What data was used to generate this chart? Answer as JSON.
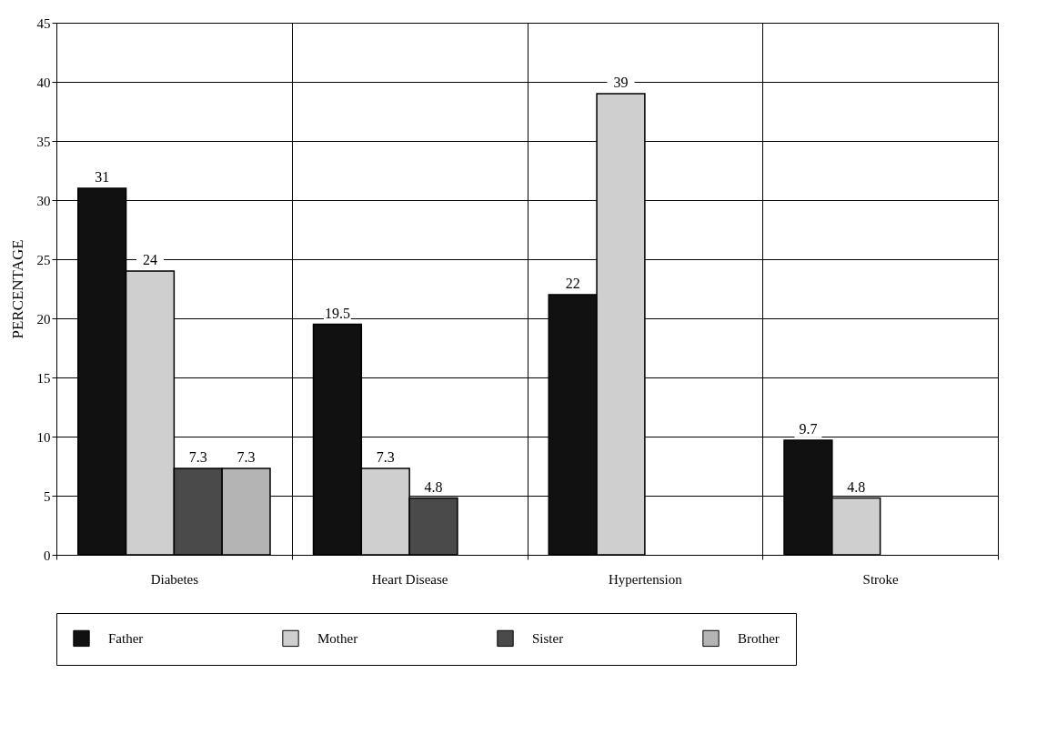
{
  "chart_data": {
    "type": "bar",
    "ylabel": "PERCENTAGE",
    "categories": [
      "Diabetes",
      "Heart Disease",
      "Hypertension",
      "Stroke"
    ],
    "series": [
      {
        "name": "Father",
        "color": "#111111",
        "values": [
          31,
          19.5,
          22,
          9.7
        ]
      },
      {
        "name": "Mother",
        "color": "#cfcfcf",
        "values": [
          24,
          7.3,
          39,
          4.8
        ]
      },
      {
        "name": "Sister",
        "color": "#4a4a4a",
        "values": [
          7.3,
          4.8,
          null,
          null
        ]
      },
      {
        "name": "Brother",
        "color": "#b4b4b4",
        "values": [
          7.3,
          null,
          null,
          null
        ]
      }
    ],
    "ylim": [
      0,
      45
    ],
    "yticks": [
      0,
      5,
      10,
      15,
      20,
      25,
      30,
      35,
      40,
      45
    ],
    "grid": true,
    "data_labels": true,
    "legend": "bottom"
  }
}
